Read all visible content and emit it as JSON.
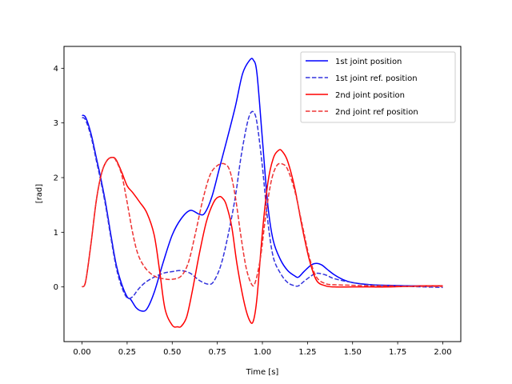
{
  "chart_data": {
    "type": "line",
    "title": "",
    "xlabel": "Time [s]",
    "ylabel": "[rad]",
    "xlim": [
      -0.1,
      2.1
    ],
    "ylim": [
      -1.0,
      4.4
    ],
    "xticks": [
      0.0,
      0.25,
      0.5,
      0.75,
      1.0,
      1.25,
      1.5,
      1.75,
      2.0
    ],
    "xtick_labels": [
      "0.00",
      "0.25",
      "0.50",
      "0.75",
      "1.00",
      "1.25",
      "1.50",
      "1.75",
      "2.00"
    ],
    "yticks": [
      0,
      1,
      2,
      3,
      4
    ],
    "ytick_labels": [
      "0",
      "1",
      "2",
      "3",
      "4"
    ],
    "grid": false,
    "legend_position": "top-right",
    "series": [
      {
        "name": "1st joint position",
        "color": "#0000ff",
        "dash": "solid",
        "x": [
          0.0,
          0.02,
          0.05,
          0.08,
          0.1,
          0.13,
          0.16,
          0.19,
          0.22,
          0.25,
          0.27,
          0.3,
          0.33,
          0.36,
          0.4,
          0.45,
          0.5,
          0.55,
          0.6,
          0.65,
          0.68,
          0.72,
          0.76,
          0.8,
          0.85,
          0.89,
          0.93,
          0.95,
          0.97,
          1.0,
          1.03,
          1.06,
          1.1,
          1.14,
          1.18,
          1.2,
          1.23,
          1.27,
          1.3,
          1.33,
          1.36,
          1.4,
          1.45,
          1.5,
          1.6,
          1.7,
          1.8,
          1.9,
          2.0
        ],
        "y": [
          3.14,
          3.1,
          2.8,
          2.35,
          2.05,
          1.55,
          0.95,
          0.4,
          0.05,
          -0.18,
          -0.23,
          -0.38,
          -0.44,
          -0.4,
          -0.1,
          0.45,
          0.95,
          1.25,
          1.4,
          1.33,
          1.35,
          1.65,
          2.15,
          2.65,
          3.3,
          3.9,
          4.15,
          4.15,
          3.9,
          2.7,
          1.5,
          0.85,
          0.5,
          0.3,
          0.2,
          0.18,
          0.28,
          0.4,
          0.43,
          0.4,
          0.32,
          0.22,
          0.13,
          0.08,
          0.04,
          0.03,
          0.02,
          0.02,
          0.02
        ]
      },
      {
        "name": "1st joint ref. position",
        "color": "#3333dd",
        "dash": "dashed",
        "x": [
          0.0,
          0.02,
          0.05,
          0.08,
          0.1,
          0.13,
          0.16,
          0.19,
          0.22,
          0.25,
          0.28,
          0.31,
          0.35,
          0.4,
          0.45,
          0.5,
          0.55,
          0.6,
          0.65,
          0.7,
          0.73,
          0.77,
          0.81,
          0.85,
          0.88,
          0.91,
          0.93,
          0.95,
          0.97,
          1.0,
          1.03,
          1.06,
          1.1,
          1.14,
          1.18,
          1.2,
          1.23,
          1.27,
          1.3,
          1.35,
          1.4,
          1.5,
          1.6,
          1.7,
          1.8,
          1.9,
          2.0
        ],
        "y": [
          3.1,
          3.05,
          2.75,
          2.3,
          2.0,
          1.5,
          0.9,
          0.35,
          0.0,
          -0.2,
          -0.18,
          -0.05,
          0.08,
          0.18,
          0.25,
          0.28,
          0.3,
          0.25,
          0.12,
          0.05,
          0.1,
          0.4,
          0.95,
          1.65,
          2.35,
          2.9,
          3.15,
          3.2,
          3.0,
          2.2,
          1.2,
          0.55,
          0.25,
          0.08,
          0.02,
          0.02,
          0.1,
          0.2,
          0.25,
          0.22,
          0.15,
          0.08,
          0.04,
          0.02,
          0.01,
          0.0,
          -0.01
        ]
      },
      {
        "name": "2nd joint position",
        "color": "#ff0000",
        "dash": "solid",
        "x": [
          0.0,
          0.02,
          0.05,
          0.08,
          0.11,
          0.14,
          0.17,
          0.19,
          0.22,
          0.25,
          0.28,
          0.32,
          0.36,
          0.4,
          0.43,
          0.46,
          0.5,
          0.53,
          0.55,
          0.58,
          0.61,
          0.65,
          0.69,
          0.73,
          0.76,
          0.78,
          0.8,
          0.83,
          0.86,
          0.9,
          0.93,
          0.95,
          0.97,
          1.0,
          1.03,
          1.06,
          1.09,
          1.11,
          1.14,
          1.18,
          1.22,
          1.26,
          1.3,
          1.35,
          1.4,
          1.5,
          1.6,
          1.7,
          1.8,
          1.9,
          2.0
        ],
        "y": [
          0.0,
          0.1,
          0.8,
          1.6,
          2.1,
          2.32,
          2.37,
          2.32,
          2.1,
          1.85,
          1.73,
          1.55,
          1.35,
          0.95,
          0.3,
          -0.4,
          -0.7,
          -0.73,
          -0.72,
          -0.55,
          -0.1,
          0.6,
          1.2,
          1.55,
          1.65,
          1.62,
          1.5,
          1.1,
          0.4,
          -0.3,
          -0.62,
          -0.62,
          -0.2,
          1.0,
          1.9,
          2.35,
          2.5,
          2.48,
          2.3,
          1.8,
          1.1,
          0.5,
          0.12,
          0.02,
          0.0,
          0.0,
          0.0,
          0.0,
          0.01,
          0.02,
          0.02
        ]
      },
      {
        "name": "2nd joint ref position",
        "color": "#ee3333",
        "dash": "dashed",
        "x": [
          0.0,
          0.02,
          0.05,
          0.08,
          0.11,
          0.14,
          0.17,
          0.19,
          0.22,
          0.25,
          0.28,
          0.31,
          0.35,
          0.4,
          0.45,
          0.5,
          0.55,
          0.59,
          0.63,
          0.67,
          0.71,
          0.75,
          0.79,
          0.82,
          0.85,
          0.88,
          0.91,
          0.94,
          0.96,
          0.99,
          1.02,
          1.05,
          1.08,
          1.11,
          1.14,
          1.18,
          1.22,
          1.26,
          1.3,
          1.35,
          1.4,
          1.5,
          1.6,
          1.7,
          1.8,
          1.9,
          2.0
        ],
        "y": [
          0.0,
          0.1,
          0.8,
          1.6,
          2.1,
          2.32,
          2.37,
          2.3,
          2.05,
          1.55,
          1.0,
          0.6,
          0.35,
          0.2,
          0.15,
          0.14,
          0.2,
          0.45,
          1.0,
          1.6,
          2.05,
          2.22,
          2.25,
          2.12,
          1.65,
          0.95,
          0.35,
          0.05,
          0.08,
          0.55,
          1.35,
          1.95,
          2.22,
          2.25,
          2.15,
          1.75,
          1.15,
          0.55,
          0.18,
          0.06,
          0.04,
          0.03,
          0.02,
          0.02,
          0.01,
          0.01,
          0.01
        ]
      }
    ]
  }
}
